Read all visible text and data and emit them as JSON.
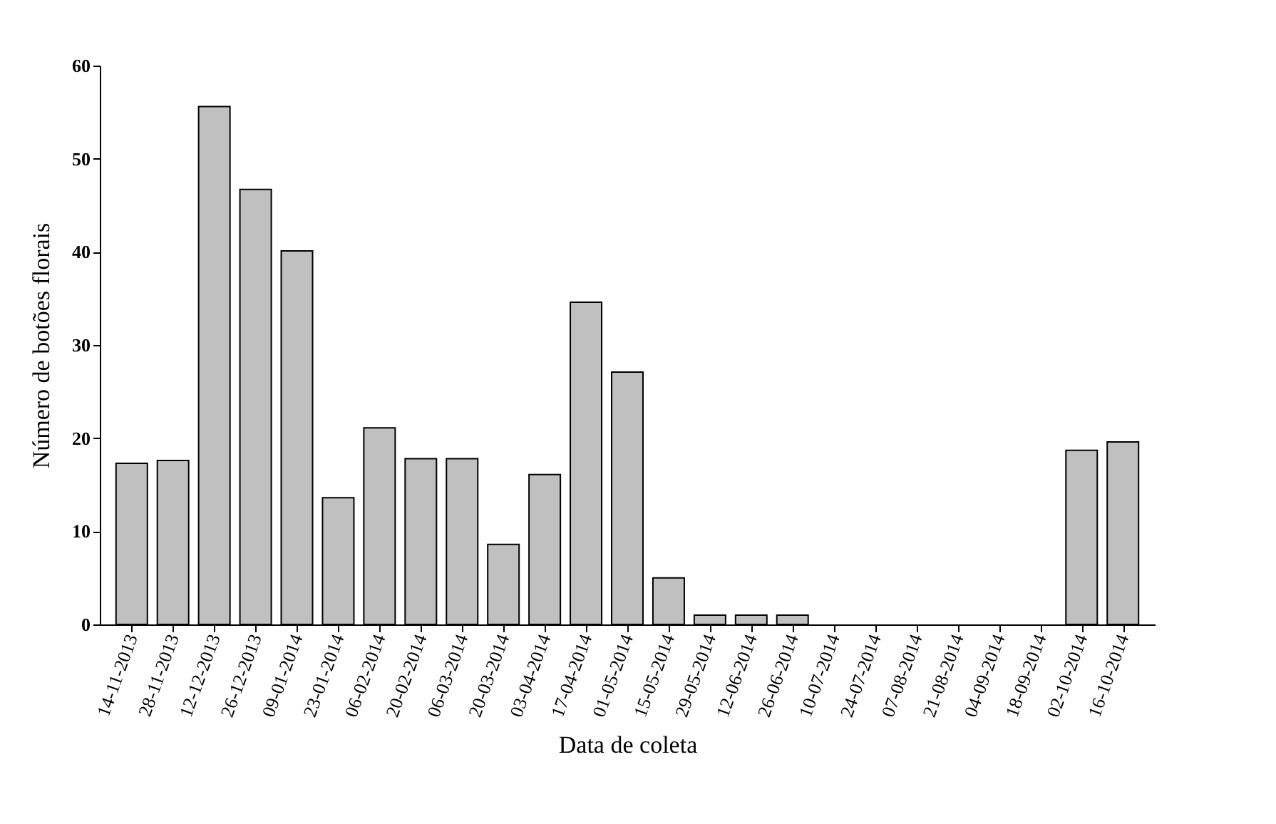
{
  "chart_data": {
    "type": "bar",
    "xlabel": "Data de coleta",
    "ylabel": "Número de botões florais",
    "categories": [
      "14-11-2013",
      "28-11-2013",
      "12-12-2013",
      "26-12-2013",
      "09-01-2014",
      "23-01-2014",
      "06-02-2014",
      "20-02-2014",
      "06-03-2014",
      "20-03-2014",
      "03-04-2014",
      "17-04-2014",
      "01-05-2014",
      "15-05-2014",
      "29-05-2014",
      "12-06-2014",
      "26-06-2014",
      "10-07-2014",
      "24-07-2014",
      "07-08-2014",
      "21-08-2014",
      "04-09-2014",
      "18-09-2014",
      "02-10-2014",
      "16-10-2014"
    ],
    "values": [
      17.3,
      17.6,
      55.6,
      46.7,
      40.1,
      13.6,
      21.1,
      17.8,
      17.8,
      8.6,
      16.1,
      34.6,
      27.1,
      5.0,
      1,
      1,
      1,
      0,
      0,
      0,
      0,
      0,
      0,
      18.7,
      19.6
    ],
    "color": "#c0c0c0",
    "ylim": [
      0,
      60
    ],
    "yticks": [
      0,
      10,
      20,
      30,
      40,
      50,
      60
    ],
    "grid": false
  }
}
